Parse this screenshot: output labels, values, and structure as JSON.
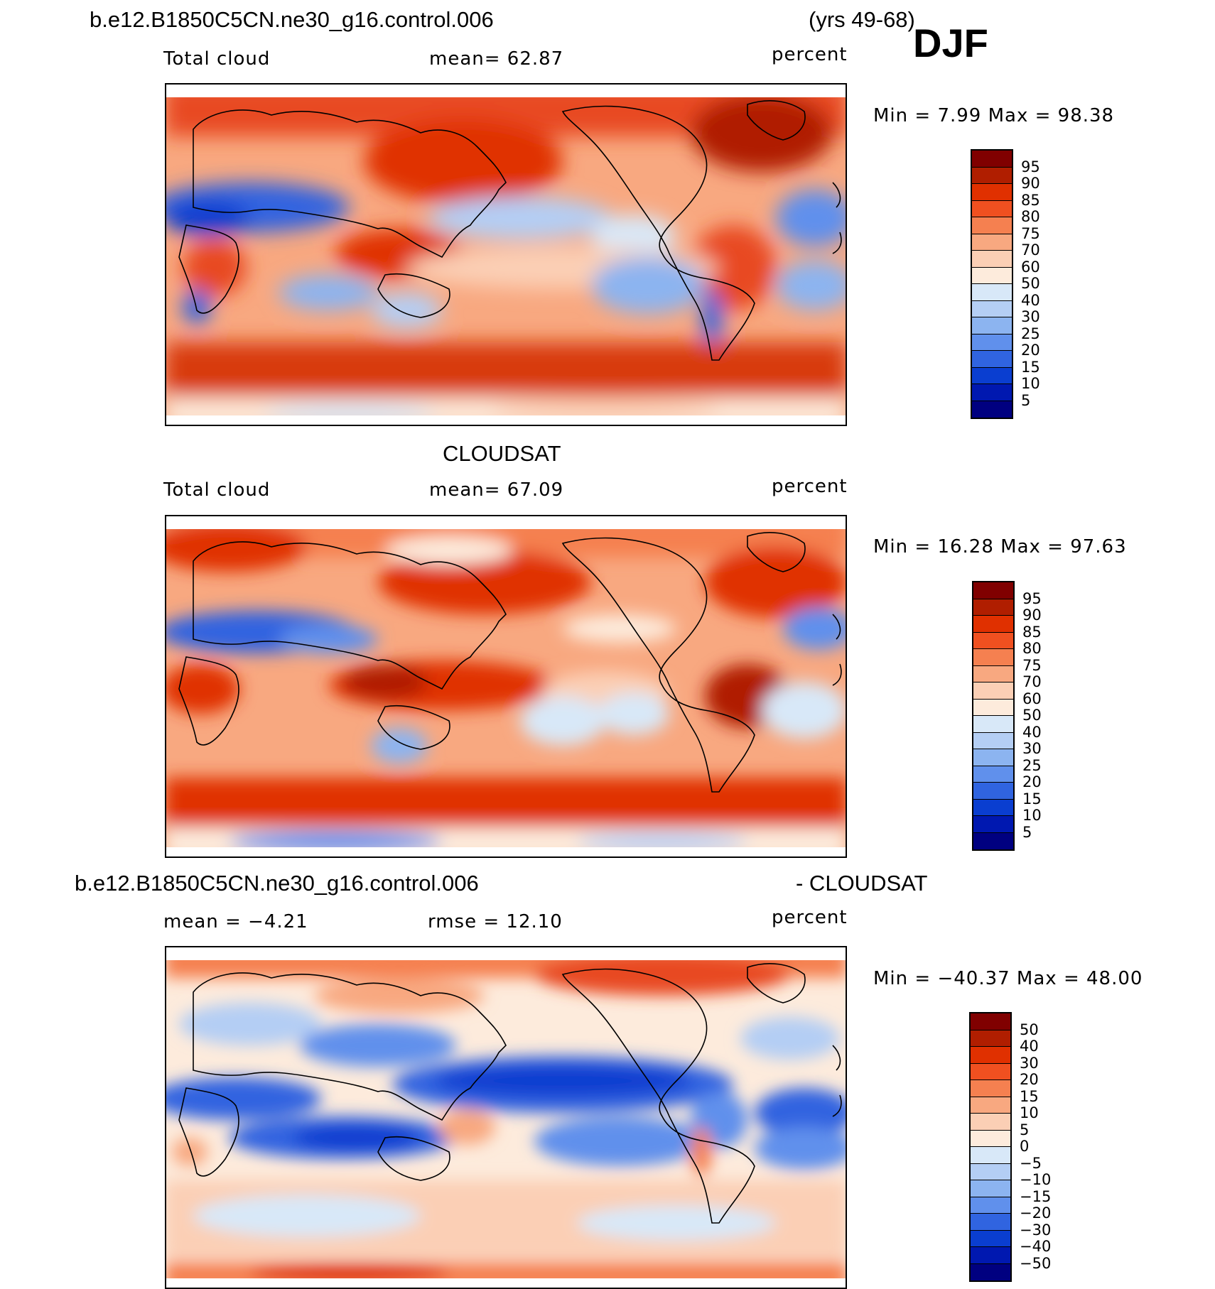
{
  "header": {
    "case_name": "b.e12.B1850C5CN.ne30_g16.control.006",
    "years": "(yrs 49-68)",
    "season": "DJF"
  },
  "panels": [
    {
      "id": "model",
      "subtitle": "",
      "left_label": "Total cloud",
      "center_label": "mean=   62.87",
      "units": "percent",
      "minmax": "Min =    7.99 Max =   98.38",
      "colorbar": {
        "labels": [
          "95",
          "90",
          "85",
          "80",
          "75",
          "70",
          "60",
          "50",
          "40",
          "30",
          "25",
          "20",
          "15",
          "10",
          "5"
        ],
        "colors": [
          "#800000",
          "#b01e00",
          "#e03000",
          "#f05020",
          "#f58050",
          "#f8a880",
          "#fbcfb5",
          "#fdebdc",
          "#d8e8f8",
          "#b4cef4",
          "#8cb4f0",
          "#6090ec",
          "#3064e0",
          "#0a3ed0",
          "#0018b0",
          "#000080"
        ]
      }
    },
    {
      "id": "obs",
      "subtitle": "CLOUDSAT",
      "left_label": "Total cloud",
      "center_label": "mean=   67.09",
      "units": "percent",
      "minmax": "Min =   16.28 Max =   97.63",
      "colorbar": {
        "labels": [
          "95",
          "90",
          "85",
          "80",
          "75",
          "70",
          "60",
          "50",
          "40",
          "30",
          "25",
          "20",
          "15",
          "10",
          "5"
        ],
        "colors": [
          "#800000",
          "#b01e00",
          "#e03000",
          "#f05020",
          "#f58050",
          "#f8a880",
          "#fbcfb5",
          "#fdebdc",
          "#d8e8f8",
          "#b4cef4",
          "#8cb4f0",
          "#6090ec",
          "#3064e0",
          "#0a3ed0",
          "#0018b0",
          "#000080"
        ]
      }
    },
    {
      "id": "diff",
      "subtitle_left": "b.e12.B1850C5CN.ne30_g16.control.006",
      "subtitle_right": "- CLOUDSAT",
      "left_label": "mean =   −4.21",
      "center_label": "rmse =   12.10",
      "units": "percent",
      "minmax": "Min = −40.37 Max =   48.00",
      "colorbar": {
        "labels": [
          "50",
          "40",
          "30",
          "20",
          "15",
          "10",
          "5",
          "0",
          "−5",
          "−10",
          "−15",
          "−20",
          "−30",
          "−40",
          "−50"
        ],
        "colors": [
          "#800000",
          "#b01e00",
          "#e03000",
          "#f05020",
          "#f58050",
          "#f8a880",
          "#fbcfb5",
          "#fdebdc",
          "#d8e8f8",
          "#b4cef4",
          "#8cb4f0",
          "#6090ec",
          "#3064e0",
          "#0a3ed0",
          "#0018b0",
          "#000080"
        ]
      }
    }
  ]
}
